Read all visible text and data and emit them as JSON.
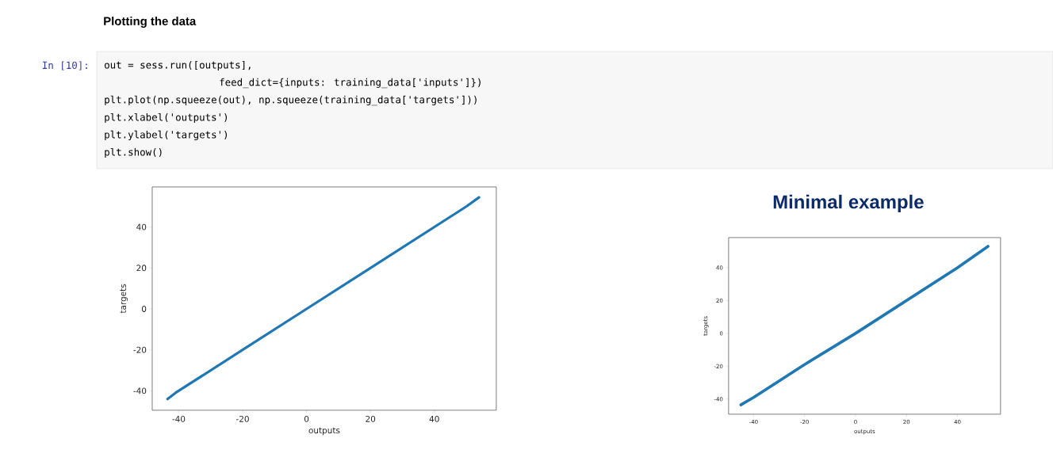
{
  "chart_data": [
    {
      "type": "line",
      "title": "Plotting the data",
      "xlabel": "outputs",
      "ylabel": "targets",
      "color": "#1f77b4",
      "line_style": "solid",
      "x": [
        -43.5,
        -41,
        -20,
        0,
        20,
        40,
        50,
        54
      ],
      "values": [
        -44,
        -41,
        -20,
        0,
        20,
        40,
        50,
        54.5
      ],
      "xlim": [
        -48.3,
        59.4
      ],
      "ylim": [
        -49.5,
        59.6
      ],
      "xticks": [
        -40,
        -20,
        0,
        20,
        40
      ],
      "yticks": [
        -40,
        -20,
        0,
        20,
        40
      ],
      "annotations": [
        "In [10]:",
        "out = sess.run([outputs],",
        "feed_dict={inputs: training_data['inputs']})",
        "plt.plot(np.squeeze(out), np.squeeze(training_data['targets']))",
        "plt.xlabel('outputs')",
        "plt.ylabel('targets')",
        "plt.show()"
      ]
    },
    {
      "type": "line",
      "title": "Minimal example",
      "xlabel": "outputs",
      "ylabel": "targets",
      "color": "#1f77b4",
      "line_style": "solid",
      "x": [
        -45,
        -40,
        -20,
        0,
        20,
        40,
        52
      ],
      "values": [
        -43.5,
        -39,
        -19,
        0,
        20,
        40,
        53
      ],
      "xlim": [
        -49.8,
        56.9
      ],
      "ylim": [
        -49.2,
        58.3
      ],
      "xticks": [
        -40,
        -20,
        0,
        20,
        40
      ],
      "yticks": [
        -40,
        -20,
        0,
        20,
        40
      ]
    }
  ]
}
